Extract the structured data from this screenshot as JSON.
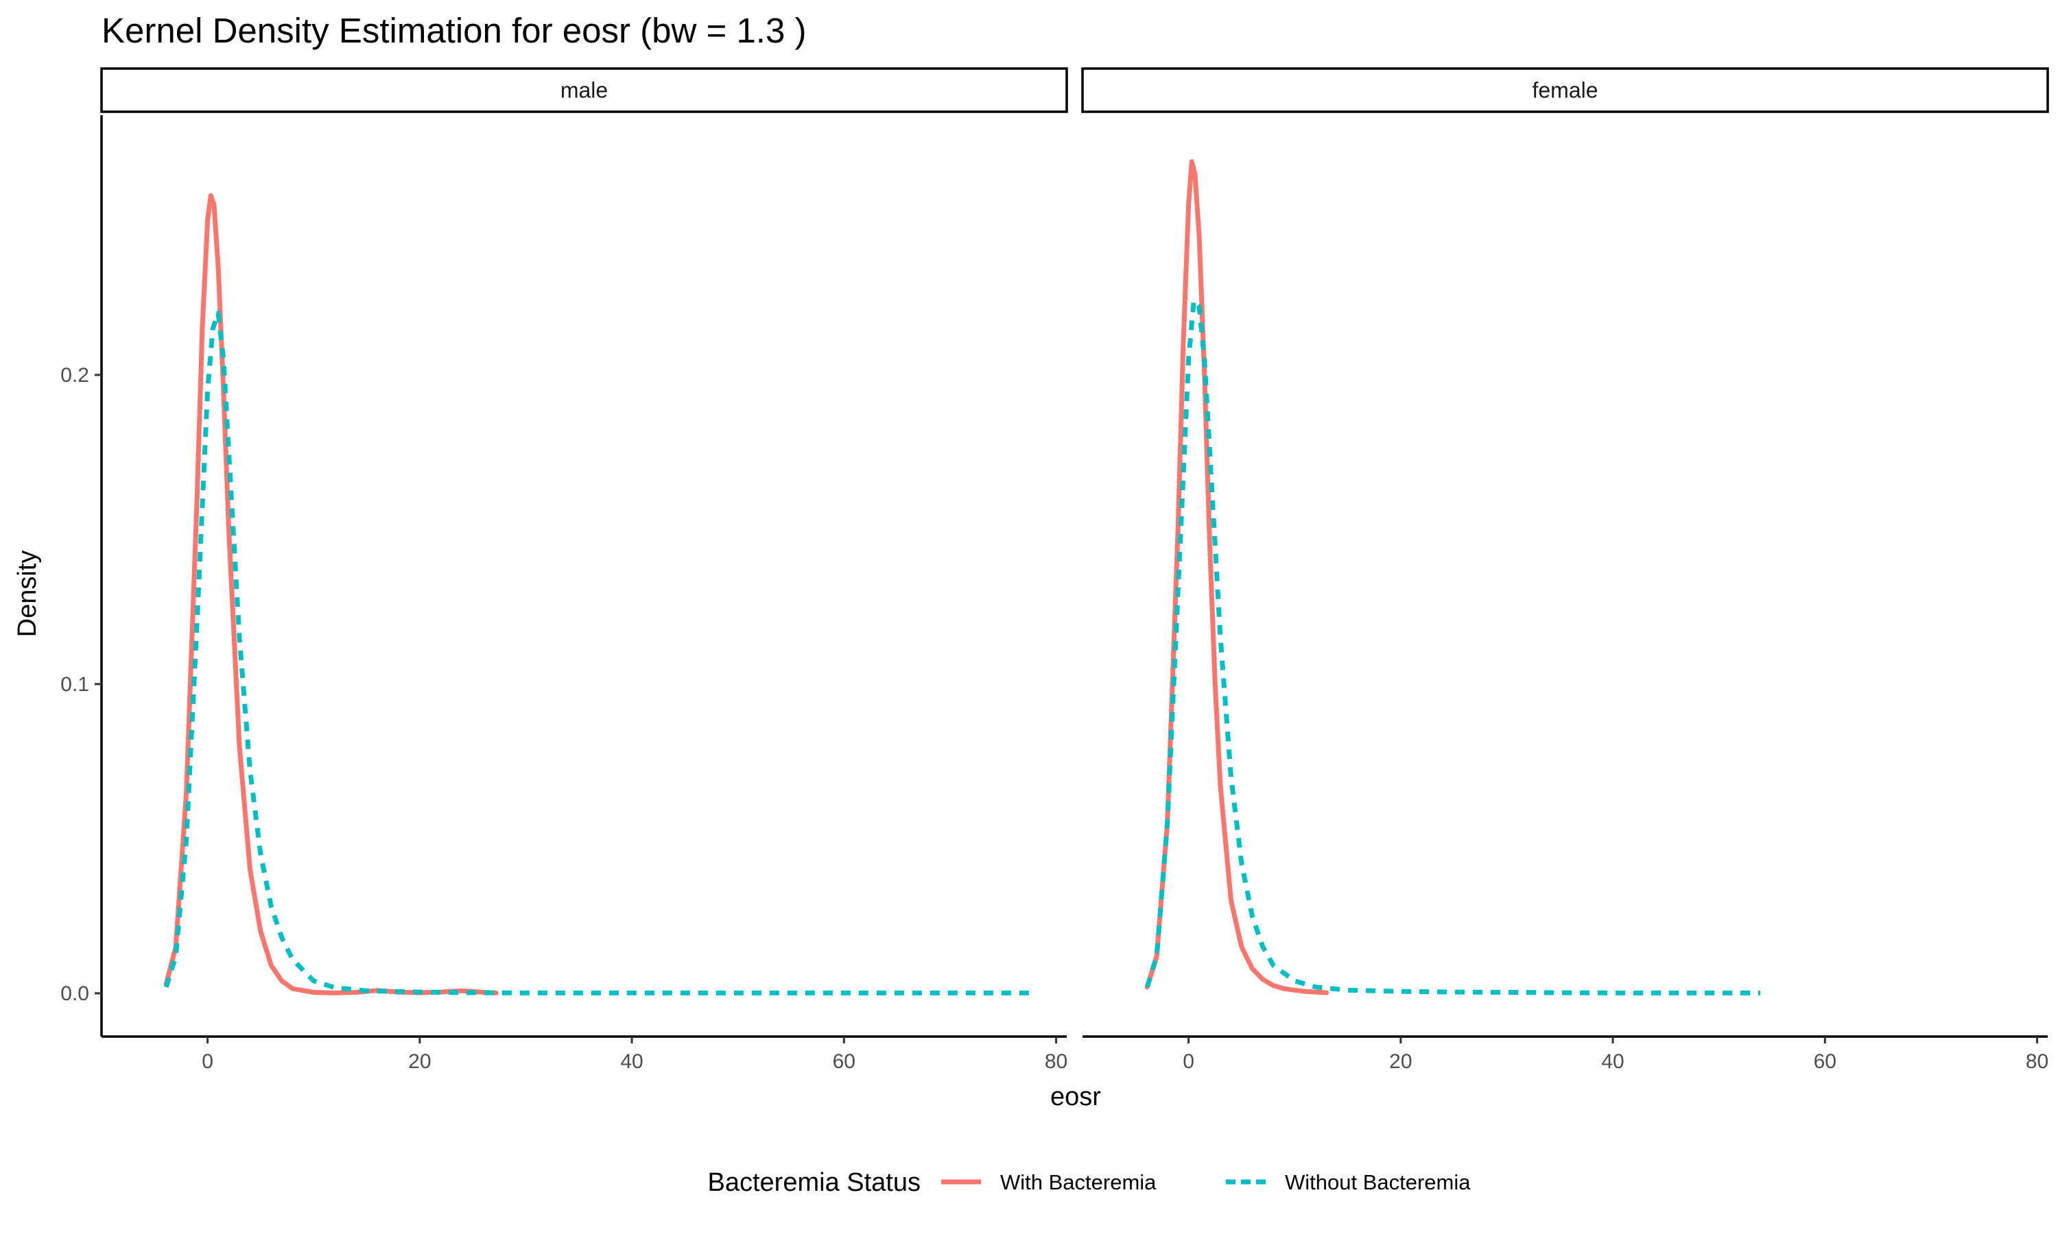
{
  "chart_data": {
    "type": "line",
    "title": "Kernel Density Estimation for eosr (bw = 1.3 )",
    "xlabel": "eosr",
    "ylabel": "Density",
    "xlim": [
      -10,
      81
    ],
    "ylim": [
      -0.014,
      0.284
    ],
    "x_ticks": [
      0,
      20,
      40,
      60,
      80
    ],
    "y_ticks": [
      0.0,
      0.1,
      0.2
    ],
    "y_tick_labels": [
      "0.0",
      "0.1",
      "0.2"
    ],
    "grid": false,
    "legend": {
      "title": "Bacteremia Status",
      "position": "bottom",
      "entries": [
        "With Bacteremia",
        "Without Bacteremia"
      ]
    },
    "series_styles": [
      {
        "name": "With Bacteremia",
        "color": "#F8766D",
        "dash": "solid"
      },
      {
        "name": "Without Bacteremia",
        "color": "#00BFC4",
        "dash": "dashed"
      }
    ],
    "panels": [
      {
        "label": "male",
        "series": [
          {
            "name": "With Bacteremia",
            "x": [
              -3.9,
              -3,
              -2,
              -1,
              -0.5,
              0,
              0.3,
              0.6,
              1,
              1.5,
              2,
              3,
              4,
              5,
              6,
              7,
              8,
              10,
              12,
              14,
              16,
              18,
              20,
              22,
              24,
              26,
              27.2
            ],
            "y": [
              0.003,
              0.015,
              0.065,
              0.16,
              0.215,
              0.25,
              0.258,
              0.255,
              0.235,
              0.195,
              0.15,
              0.08,
              0.04,
              0.02,
              0.009,
              0.004,
              0.0015,
              0.0003,
              0.0001,
              0.0003,
              0.0009,
              0.0004,
              0.0002,
              0.0004,
              0.0008,
              0.0003,
              0.0001
            ]
          },
          {
            "name": "Without Bacteremia",
            "x": [
              -3.9,
              -3,
              -2,
              -1,
              0,
              0.5,
              1,
              1.5,
              2,
              3,
              4,
              5,
              6,
              7,
              8,
              10,
              12,
              15,
              20,
              25,
              30,
              40,
              50,
              60,
              70,
              77.5
            ],
            "y": [
              0.002,
              0.012,
              0.05,
              0.12,
              0.195,
              0.215,
              0.22,
              0.205,
              0.175,
              0.115,
              0.072,
              0.045,
              0.028,
              0.018,
              0.011,
              0.004,
              0.0018,
              0.0008,
              0.0004,
              0.0002,
              0.0001,
              0.0001,
              0.0001,
              0.0001,
              0.0001,
              0.0001
            ]
          }
        ]
      },
      {
        "label": "female",
        "series": [
          {
            "name": "With Bacteremia",
            "x": [
              -3.9,
              -3,
              -2,
              -1,
              -0.5,
              0,
              0.3,
              0.6,
              1,
              1.5,
              2,
              2.5,
              3,
              4,
              5,
              6,
              7,
              8,
              9,
              10,
              11,
              12,
              13
            ],
            "y": [
              0.002,
              0.012,
              0.055,
              0.15,
              0.21,
              0.255,
              0.269,
              0.265,
              0.245,
              0.2,
              0.145,
              0.1,
              0.067,
              0.03,
              0.015,
              0.008,
              0.0045,
              0.0025,
              0.0015,
              0.001,
              0.0006,
              0.0004,
              0.0002
            ]
          },
          {
            "name": "Without Bacteremia",
            "x": [
              -3.9,
              -3,
              -2,
              -1,
              0,
              0.5,
              1,
              1.5,
              2,
              3,
              4,
              5,
              6,
              7,
              8,
              10,
              12,
              15,
              20,
              25,
              30,
              35,
              40,
              45,
              50,
              53.9
            ],
            "y": [
              0.002,
              0.012,
              0.055,
              0.13,
              0.205,
              0.224,
              0.222,
              0.205,
              0.175,
              0.115,
              0.07,
              0.042,
              0.025,
              0.015,
              0.009,
              0.004,
              0.002,
              0.001,
              0.0006,
              0.0004,
              0.0003,
              0.0002,
              0.0001,
              0.0001,
              0.0001,
              0.0001
            ]
          }
        ]
      }
    ]
  }
}
